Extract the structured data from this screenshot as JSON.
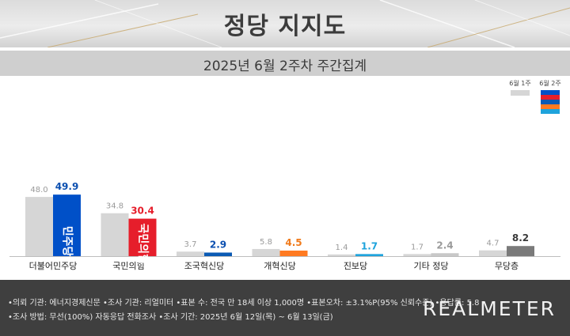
{
  "header": {
    "title": "정당 지지도"
  },
  "subtitle": "2025년 6월 2주차 주간집계",
  "legend": {
    "prev_label": "6월 1주",
    "curr_label": "6월 2주"
  },
  "colors": {
    "prev": "#d6d6d6",
    "parties": [
      "#0050c8",
      "#e61e2b",
      "#0a5ab4",
      "#ff7a21",
      "#1ea3dc",
      "#c8c8c8",
      "#7a7a7a"
    ],
    "labels_curr": [
      "#0b4fb0",
      "#e61e2b",
      "#0b4fb0",
      "#f07a1a",
      "#1ea3dc",
      "#9a9a9a",
      "#3a3a3a"
    ]
  },
  "chart_data": {
    "type": "bar",
    "categories": [
      "더불어민주당",
      "국민의힘",
      "조국혁신당",
      "개혁신당",
      "진보당",
      "기타 정당",
      "무당층"
    ],
    "series": [
      {
        "name": "6월 1주",
        "values": [
          48.0,
          34.8,
          3.7,
          5.8,
          1.4,
          1.7,
          4.7
        ]
      },
      {
        "name": "6월 2주",
        "values": [
          49.9,
          30.4,
          2.9,
          4.5,
          1.7,
          2.4,
          8.2
        ]
      }
    ],
    "value_labels_prev": [
      "48.0",
      "34.8",
      "3.7",
      "5.8",
      "1.4",
      "1.7",
      "4.7"
    ],
    "value_labels_curr": [
      "49.9",
      "30.4",
      "2.9",
      "4.5",
      "1.7",
      "2.4",
      "8.2"
    ],
    "bar_logos": [
      "민주당",
      "국민의힘"
    ],
    "ylim": [
      0,
      55
    ],
    "grid": false,
    "legend_position": "top-right"
  },
  "footer": {
    "line1": "•의뢰 기관: 에너지경제신문  •조사 기관: 리얼미터  •표본 수: 전국 만 18세 이상 1,000명  •표본오차: ±3.1%P(95% 신뢰수준)  •응답률: 5.8",
    "line2": "•조사 방법: 무선(100%) 자동응답 전화조사  •조사 기간: 2025년 6월 12일(목) ~ 6월 13일(금)",
    "logo": "REALMETER"
  }
}
